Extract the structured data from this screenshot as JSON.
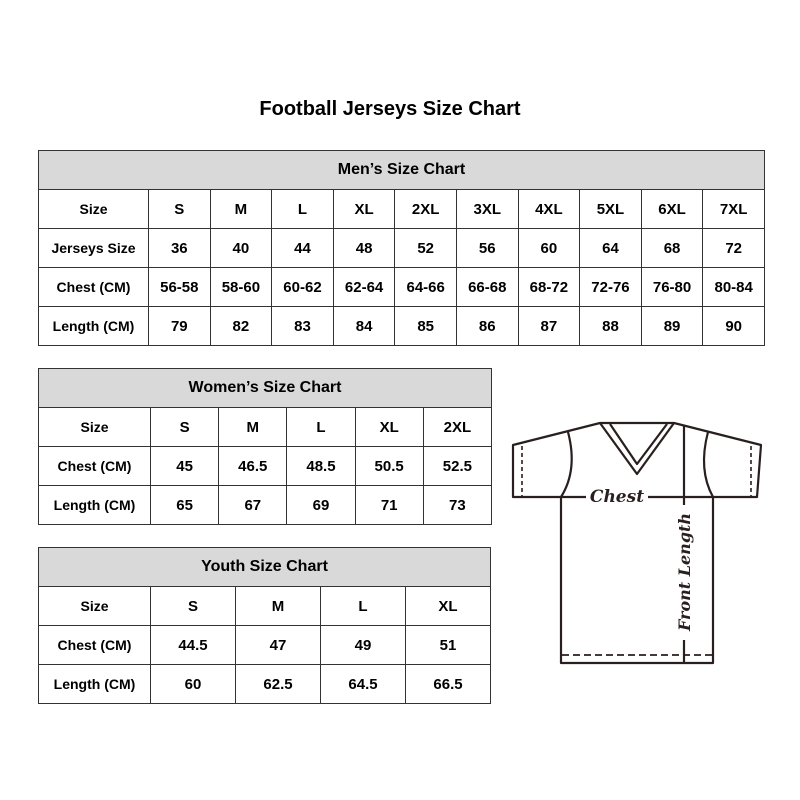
{
  "title": "Football Jerseys Size Chart",
  "men": {
    "title": "Men’s Size Chart",
    "rows": [
      [
        "Size",
        "S",
        "M",
        "L",
        "XL",
        "2XL",
        "3XL",
        "4XL",
        "5XL",
        "6XL",
        "7XL"
      ],
      [
        "Jerseys Size",
        "36",
        "40",
        "44",
        "48",
        "52",
        "56",
        "60",
        "64",
        "68",
        "72"
      ],
      [
        "Chest (CM)",
        "56-58",
        "58-60",
        "60-62",
        "62-64",
        "64-66",
        "66-68",
        "68-72",
        "72-76",
        "76-80",
        "80-84"
      ],
      [
        "Length (CM)",
        "79",
        "82",
        "83",
        "84",
        "85",
        "86",
        "87",
        "88",
        "89",
        "90"
      ]
    ]
  },
  "women": {
    "title": "Women’s Size Chart",
    "rows": [
      [
        "Size",
        "S",
        "M",
        "L",
        "XL",
        "2XL"
      ],
      [
        "Chest (CM)",
        "45",
        "46.5",
        "48.5",
        "50.5",
        "52.5"
      ],
      [
        "Length (CM)",
        "65",
        "67",
        "69",
        "71",
        "73"
      ]
    ]
  },
  "youth": {
    "title": "Youth Size Chart",
    "rows": [
      [
        "Size",
        "S",
        "M",
        "L",
        "XL"
      ],
      [
        "Chest (CM)",
        "44.5",
        "47",
        "49",
        "51"
      ],
      [
        "Length (CM)",
        "60",
        "62.5",
        "64.5",
        "66.5"
      ]
    ]
  },
  "diagram": {
    "chest_label": "Chest",
    "length_label": "Front Length"
  }
}
